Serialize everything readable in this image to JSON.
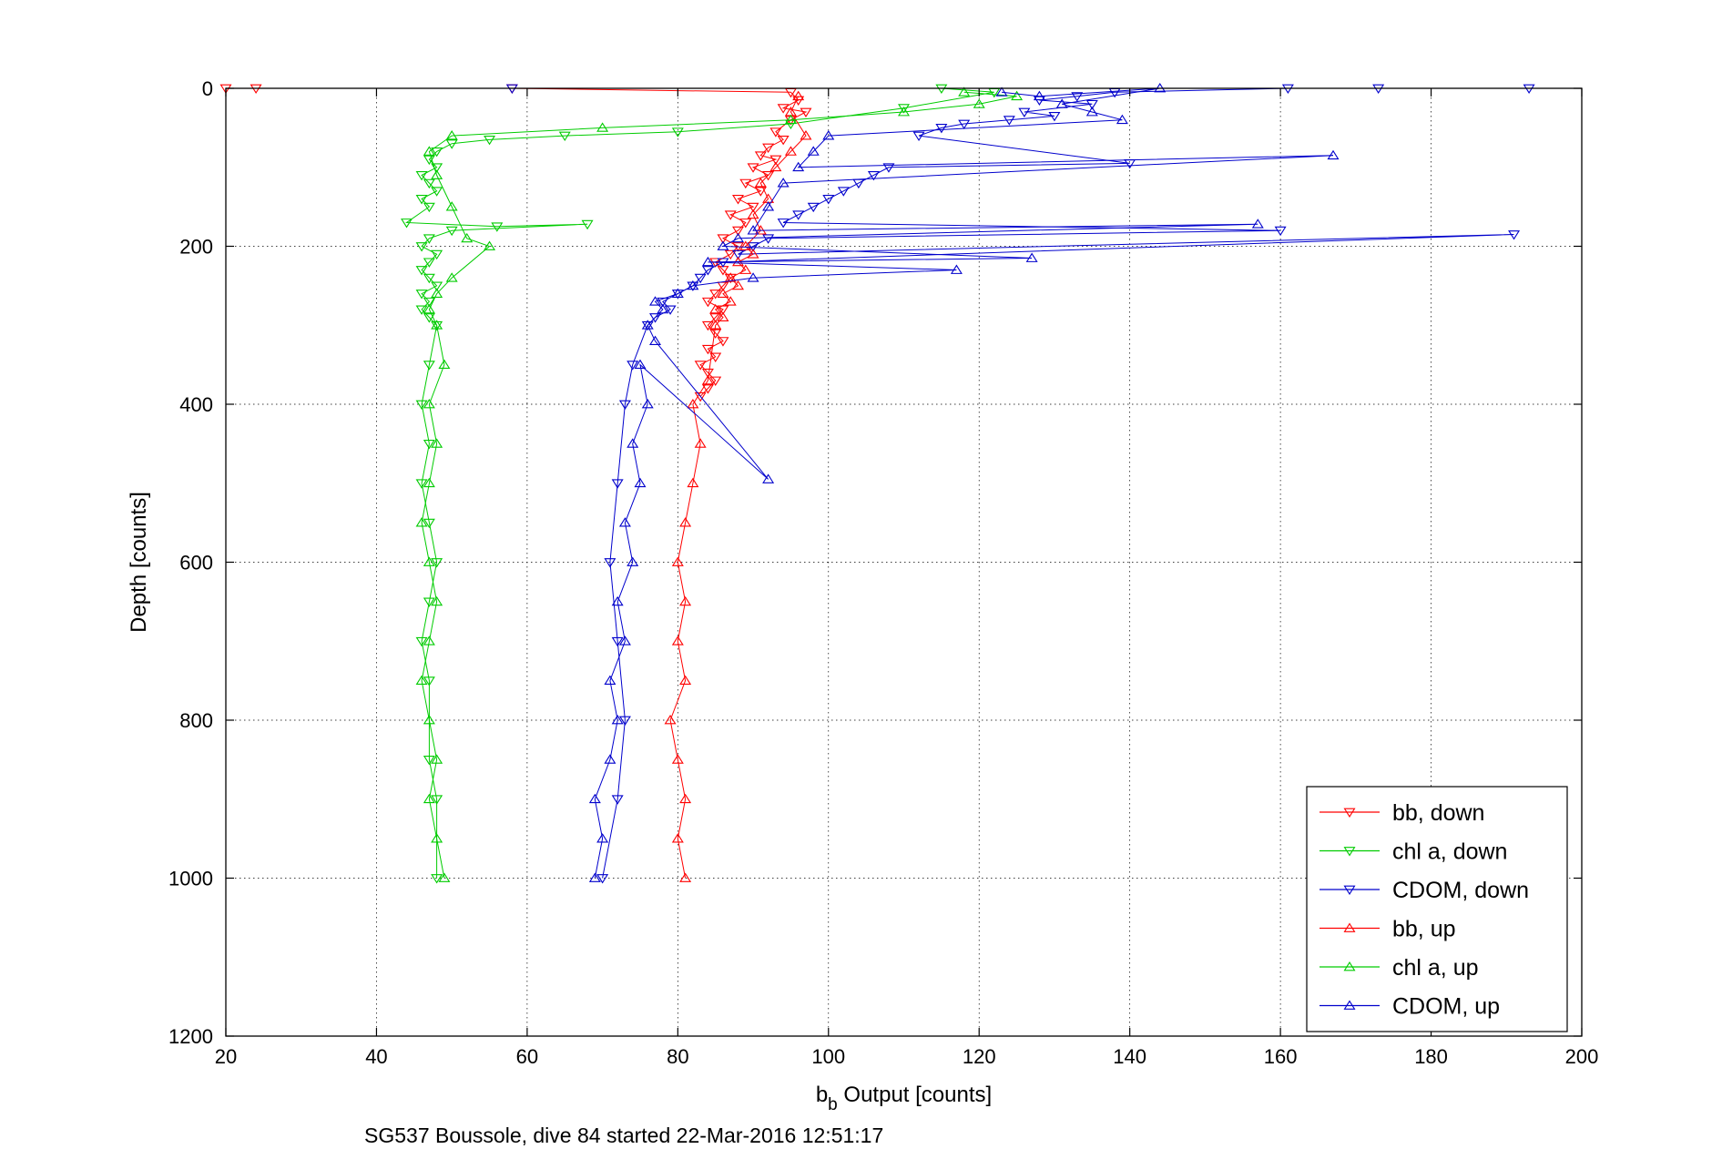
{
  "chart_data": {
    "type": "scatter",
    "title": "",
    "xlabel": {
      "main": "b",
      "sub": "b",
      "rest": " Output [counts]"
    },
    "ylabel": "Depth [counts]",
    "footer": "SG537 Boussole, dive 84 started 22-Mar-2016 12:51:17",
    "xlim": [
      20,
      200
    ],
    "ylim": [
      0,
      1200
    ],
    "y_reversed": true,
    "xticks": [
      20,
      40,
      60,
      80,
      100,
      120,
      140,
      160,
      180,
      200
    ],
    "yticks": [
      0,
      200,
      400,
      600,
      800,
      1000,
      1200
    ],
    "xtick_labels": [
      "20",
      "40",
      "60",
      "80",
      "100",
      "120",
      "140",
      "160",
      "180",
      "200"
    ],
    "ytick_labels": [
      "0",
      "200",
      "400",
      "600",
      "800",
      "1000",
      "1200"
    ],
    "grid": true,
    "legend_position": "bottom-right",
    "series": [
      {
        "name": "bb, down",
        "color": "#ff0000",
        "marker": "triangle-down",
        "connected": true,
        "x": [
          20,
          24,
          58,
          95,
          96,
          94,
          97,
          95,
          93,
          94,
          92,
          91,
          93,
          90,
          92,
          89,
          91,
          88,
          90,
          87,
          89,
          88,
          86,
          88,
          87,
          85,
          86,
          87,
          86,
          85,
          84,
          86,
          85,
          84,
          85,
          86,
          84,
          85,
          83,
          84,
          85,
          84,
          83
        ],
        "y": [
          0,
          0,
          0,
          5,
          15,
          25,
          30,
          40,
          55,
          65,
          75,
          85,
          90,
          100,
          110,
          120,
          130,
          140,
          150,
          160,
          170,
          180,
          190,
          200,
          210,
          220,
          230,
          240,
          250,
          260,
          270,
          280,
          290,
          300,
          310,
          320,
          330,
          340,
          350,
          360,
          370,
          380,
          390
        ]
      },
      {
        "name": "chl a, down",
        "color": "#00cc00",
        "marker": "triangle-down",
        "connected": true,
        "x": [
          115,
          122,
          110,
          95,
          80,
          65,
          55,
          50,
          48,
          47,
          48,
          46,
          47,
          48,
          46,
          47,
          44,
          56,
          68,
          50,
          47,
          46,
          48,
          47,
          46,
          47,
          48,
          46,
          47,
          46,
          47,
          48,
          47,
          46,
          47,
          46,
          47,
          48,
          47,
          46,
          47,
          47,
          48,
          48
        ],
        "y": [
          0,
          5,
          25,
          45,
          55,
          60,
          65,
          70,
          80,
          90,
          100,
          110,
          120,
          130,
          140,
          150,
          170,
          175,
          172,
          180,
          190,
          200,
          210,
          220,
          230,
          240,
          250,
          260,
          270,
          280,
          290,
          300,
          350,
          400,
          450,
          500,
          550,
          600,
          650,
          700,
          750,
          850,
          900,
          1000
        ]
      },
      {
        "name": "CDOM, down",
        "color": "#0000cc",
        "marker": "triangle-down",
        "connected": true,
        "x": [
          58,
          193,
          173,
          161,
          138,
          133,
          128,
          135,
          126,
          130,
          124,
          118,
          115,
          112,
          140,
          108,
          106,
          104,
          102,
          100,
          98,
          96,
          94,
          160,
          92,
          90,
          88,
          191,
          86,
          84,
          83,
          82,
          80,
          78,
          79,
          77,
          76,
          74,
          73,
          72,
          71,
          72,
          73,
          72,
          70
        ],
        "y": [
          0,
          0,
          0,
          0,
          5,
          10,
          15,
          20,
          30,
          35,
          40,
          45,
          50,
          60,
          95,
          100,
          110,
          120,
          130,
          140,
          150,
          160,
          170,
          180,
          190,
          200,
          210,
          185,
          220,
          230,
          240,
          250,
          260,
          270,
          280,
          290,
          300,
          350,
          400,
          500,
          600,
          700,
          800,
          900,
          1000
        ]
      },
      {
        "name": "bb, up",
        "color": "#ff0000",
        "marker": "triangle-up",
        "connected": true,
        "x": [
          81,
          80,
          81,
          80,
          79,
          81,
          80,
          81,
          80,
          81,
          82,
          83,
          82,
          84,
          85,
          86,
          85,
          87,
          86,
          88,
          87,
          89,
          88,
          90,
          89,
          91,
          90,
          92,
          91,
          93,
          95,
          97,
          95,
          96
        ],
        "y": [
          1000,
          950,
          900,
          850,
          800,
          750,
          700,
          650,
          600,
          550,
          500,
          450,
          400,
          370,
          300,
          290,
          280,
          270,
          260,
          250,
          240,
          230,
          220,
          210,
          200,
          180,
          160,
          140,
          120,
          100,
          80,
          60,
          30,
          10
        ]
      },
      {
        "name": "chl a, up",
        "color": "#00cc00",
        "marker": "triangle-up",
        "connected": true,
        "x": [
          49,
          48,
          47,
          48,
          47,
          46,
          47,
          48,
          47,
          46,
          47,
          48,
          47,
          49,
          48,
          47,
          48,
          50,
          55,
          52,
          50,
          48,
          47,
          50,
          70,
          95,
          110,
          120,
          125,
          118
        ],
        "y": [
          1000,
          950,
          900,
          850,
          800,
          750,
          700,
          650,
          600,
          550,
          500,
          450,
          400,
          350,
          300,
          280,
          260,
          240,
          200,
          190,
          150,
          110,
          80,
          60,
          50,
          40,
          30,
          20,
          10,
          5
        ]
      },
      {
        "name": "CDOM, up",
        "color": "#0000cc",
        "marker": "triangle-up",
        "connected": true,
        "x": [
          69,
          70,
          69,
          71,
          72,
          71,
          73,
          72,
          74,
          73,
          75,
          74,
          76,
          75,
          92,
          77,
          76,
          78,
          77,
          80,
          82,
          90,
          117,
          84,
          127,
          86,
          88,
          157,
          90,
          92,
          94,
          167,
          96,
          98,
          100,
          139,
          135,
          131,
          144,
          128,
          123
        ],
        "y": [
          1000,
          950,
          900,
          850,
          800,
          750,
          700,
          650,
          600,
          550,
          500,
          450,
          400,
          350,
          495,
          320,
          300,
          280,
          270,
          260,
          250,
          240,
          230,
          220,
          215,
          200,
          190,
          172,
          180,
          150,
          120,
          85,
          100,
          80,
          60,
          40,
          30,
          20,
          0,
          10,
          5
        ]
      }
    ]
  }
}
